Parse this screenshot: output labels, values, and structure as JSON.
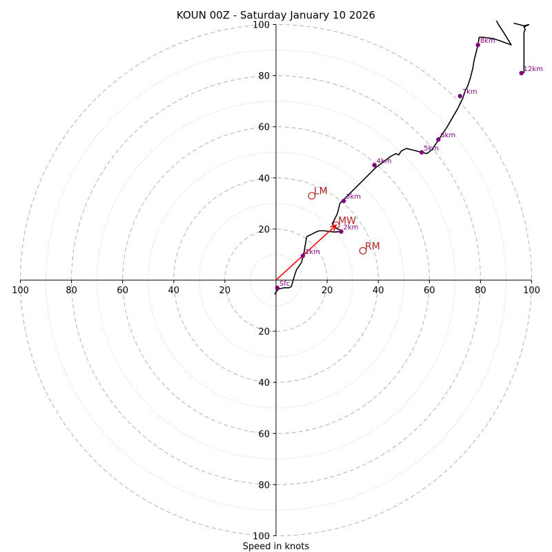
{
  "chart_data": {
    "type": "hodograph",
    "title": "KOUN 00Z - Saturday January 10 2026",
    "xlabel": "Speed in knots",
    "range": 100,
    "rings_major": [
      20,
      40,
      60,
      80,
      100
    ],
    "rings_minor": [
      10,
      30,
      50,
      70,
      90
    ],
    "x_tick_labels": [
      "100",
      "80",
      "60",
      "40",
      "20",
      "20",
      "40",
      "60",
      "80",
      "100"
    ],
    "x_tick_values": [
      -100,
      -80,
      -60,
      -40,
      -20,
      20,
      40,
      60,
      80,
      100
    ],
    "y_tick_labels": [
      "100",
      "80",
      "60",
      "40",
      "20",
      "20",
      "40",
      "60",
      "80",
      "100"
    ],
    "y_tick_values": [
      100,
      80,
      60,
      40,
      20,
      -20,
      -40,
      -60,
      -80,
      -100
    ],
    "trace_color": "#000000",
    "height_marker_color": "#800080",
    "motion_color": "#b22222",
    "arrow_color": "#ff0000",
    "grid_color": "#b0b0b0",
    "trace": [
      [
        -0.5,
        -5.5
      ],
      [
        0.5,
        -4
      ],
      [
        1,
        -3.5
      ],
      [
        3,
        -3
      ],
      [
        5,
        -3
      ],
      [
        6,
        -2.5
      ],
      [
        7,
        1
      ],
      [
        8,
        4
      ],
      [
        10,
        7
      ],
      [
        10.5,
        9.5
      ],
      [
        11,
        11
      ],
      [
        11.5,
        14
      ],
      [
        12,
        17
      ],
      [
        14,
        18
      ],
      [
        16,
        19
      ],
      [
        17,
        19.3
      ],
      [
        19,
        19.3
      ],
      [
        21,
        19
      ],
      [
        23,
        18.8
      ],
      [
        25,
        19
      ],
      [
        26,
        19.3
      ],
      [
        24,
        20
      ],
      [
        22,
        22
      ],
      [
        23,
        24
      ],
      [
        24,
        26
      ],
      [
        25,
        30
      ],
      [
        27,
        32
      ],
      [
        29,
        34
      ],
      [
        31,
        36
      ],
      [
        33,
        38
      ],
      [
        35,
        40
      ],
      [
        37,
        42
      ],
      [
        39,
        44
      ],
      [
        41,
        45.5
      ],
      [
        43,
        47
      ],
      [
        45,
        48.5
      ],
      [
        47,
        49.5
      ],
      [
        48,
        49
      ],
      [
        49,
        50.5
      ],
      [
        51,
        51.5
      ],
      [
        53,
        51
      ],
      [
        55,
        50.5
      ],
      [
        57,
        50
      ],
      [
        59,
        49.5
      ],
      [
        61,
        51
      ],
      [
        63,
        54
      ],
      [
        65,
        57
      ],
      [
        67,
        60
      ],
      [
        69,
        63.5
      ],
      [
        71,
        67
      ],
      [
        73,
        71
      ],
      [
        74,
        74
      ],
      [
        75,
        76
      ],
      [
        76,
        79
      ],
      [
        77,
        83
      ],
      [
        77.5,
        86
      ],
      [
        78,
        88
      ],
      [
        79,
        92
      ],
      [
        79.5,
        95
      ],
      [
        81,
        95
      ],
      [
        85,
        94.5
      ],
      [
        88,
        93.5
      ],
      [
        92,
        92
      ],
      [
        89,
        97
      ],
      [
        87,
        100
      ],
      [
        86,
        102
      ]
    ],
    "trace_b": [
      [
        93,
        100.5
      ],
      [
        95,
        100
      ],
      [
        97,
        99.5
      ],
      [
        99,
        100
      ]
    ],
    "trace_c": [
      [
        99,
        100
      ],
      [
        97,
        99
      ],
      [
        97.5,
        98
      ],
      [
        97,
        97
      ],
      [
        97,
        93
      ],
      [
        97,
        88
      ],
      [
        97,
        84
      ],
      [
        97,
        81
      ]
    ],
    "height_markers": [
      {
        "label": "Sfc",
        "u": 0.5,
        "v": -3
      },
      {
        "label": "1km",
        "u": 10.5,
        "v": 9.5
      },
      {
        "label": "2km",
        "u": 25.5,
        "v": 19
      },
      {
        "label": "3km",
        "u": 26.5,
        "v": 31
      },
      {
        "label": "4km",
        "u": 38.5,
        "v": 45
      },
      {
        "label": "5km",
        "u": 57,
        "v": 50
      },
      {
        "label": "6km",
        "u": 63.5,
        "v": 55
      },
      {
        "label": "7km",
        "u": 72,
        "v": 72
      },
      {
        "label": "8km",
        "u": 79,
        "v": 92
      },
      {
        "label": "12km",
        "u": 96,
        "v": 81
      }
    ],
    "storm_motions": [
      {
        "label": "LM",
        "u": 14,
        "v": 33
      },
      {
        "label": "MW",
        "u": 23.5,
        "v": 21.5
      },
      {
        "label": "RM",
        "u": 34,
        "v": 11.5
      }
    ],
    "mean_wind_arrow": {
      "from": [
        0,
        0
      ],
      "to": [
        23.5,
        21.5
      ]
    }
  }
}
